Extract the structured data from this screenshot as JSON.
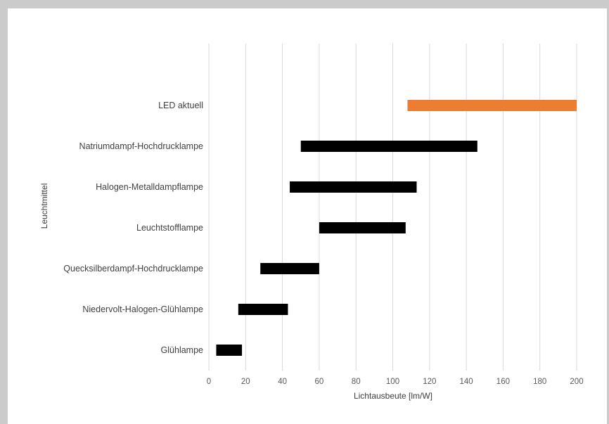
{
  "chart_data": {
    "type": "bar",
    "orientation": "horizontal",
    "subtype": "floating-range",
    "title": "",
    "xlabel": "Lichtausbeute [lm/W]",
    "ylabel": "Leuchtmittel",
    "xlim": [
      0,
      200
    ],
    "xticks": [
      "0",
      "20",
      "40",
      "60",
      "80",
      "100",
      "120",
      "140",
      "160",
      "180",
      "200"
    ],
    "grid": "vertical",
    "legend": "none",
    "categories": [
      "LED aktuell",
      "Natriumdampf-Hochdrucklampe",
      "Halogen-Metalldampflampe",
      "Leuchtstofflampe",
      "Quecksilberdampf-Hochdrucklampe",
      "Niedervolt-Halogen-Glühlampe",
      "Glühlampe"
    ],
    "ranges": [
      [
        108,
        200
      ],
      [
        50,
        146
      ],
      [
        44,
        113
      ],
      [
        60,
        107
      ],
      [
        28,
        60
      ],
      [
        16,
        43
      ],
      [
        4,
        18
      ]
    ],
    "colors": [
      "#ED7D31",
      "#000000",
      "#000000",
      "#000000",
      "#000000",
      "#000000",
      "#000000"
    ],
    "gridColor": "#d9d9d9"
  }
}
